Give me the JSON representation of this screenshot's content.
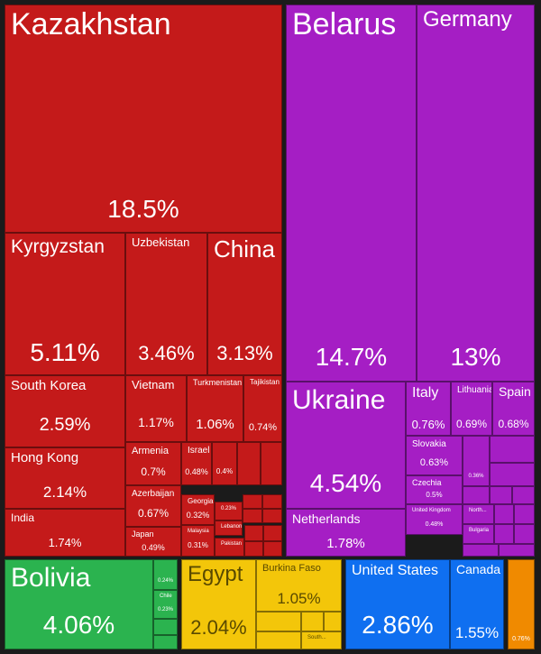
{
  "chart_data": {
    "type": "treemap",
    "colors": {
      "asia": "#c41a1a",
      "europe": "#a51ec4",
      "south_america": "#2bb34f",
      "africa": "#f3c60a",
      "north_america": "#0f6ff0",
      "oceania": "#f08a00"
    },
    "items": [
      {
        "id": "kazakhstan",
        "label": "Kazakhstan",
        "value": "18.5%",
        "group": "asia"
      },
      {
        "id": "kyrgyzstan",
        "label": "Kyrgyzstan",
        "value": "5.11%",
        "group": "asia"
      },
      {
        "id": "uzbekistan",
        "label": "Uzbekistan",
        "value": "3.46%",
        "group": "asia"
      },
      {
        "id": "china",
        "label": "China",
        "value": "3.13%",
        "group": "asia"
      },
      {
        "id": "south-korea",
        "label": "South Korea",
        "value": "2.59%",
        "group": "asia"
      },
      {
        "id": "hong-kong",
        "label": "Hong Kong",
        "value": "2.14%",
        "group": "asia"
      },
      {
        "id": "india",
        "label": "India",
        "value": "1.74%",
        "group": "asia"
      },
      {
        "id": "vietnam",
        "label": "Vietnam",
        "value": "1.17%",
        "group": "asia"
      },
      {
        "id": "turkmenistan",
        "label": "Turkmenistan",
        "value": "1.06%",
        "group": "asia"
      },
      {
        "id": "tajikistan",
        "label": "Tajikistan",
        "value": "0.74%",
        "group": "asia"
      },
      {
        "id": "armenia",
        "label": "Armenia",
        "value": "0.7%",
        "group": "asia"
      },
      {
        "id": "israel",
        "label": "Israel",
        "value": "0.48%",
        "group": "asia"
      },
      {
        "id": "asia-04",
        "label": "",
        "value": "0.4%",
        "group": "asia"
      },
      {
        "id": "azerbaijan",
        "label": "Azerbaijan",
        "value": "0.67%",
        "group": "asia"
      },
      {
        "id": "georgia",
        "label": "Georgia",
        "value": "0.32%",
        "group": "asia"
      },
      {
        "id": "asia-023",
        "label": "",
        "value": "0.23%",
        "group": "asia"
      },
      {
        "id": "lebanon",
        "label": "Lebanon",
        "value": "",
        "group": "asia"
      },
      {
        "id": "japan",
        "label": "Japan",
        "value": "0.49%",
        "group": "asia"
      },
      {
        "id": "malaysia",
        "label": "Malaysia",
        "value": "0.31%",
        "group": "asia"
      },
      {
        "id": "pakistan",
        "label": "Pakistan",
        "value": "",
        "group": "asia"
      },
      {
        "id": "belarus",
        "label": "Belarus",
        "value": "14.7%",
        "group": "europe"
      },
      {
        "id": "germany",
        "label": "Germany",
        "value": "13%",
        "group": "europe"
      },
      {
        "id": "ukraine",
        "label": "Ukraine",
        "value": "4.54%",
        "group": "europe"
      },
      {
        "id": "italy",
        "label": "Italy",
        "value": "0.76%",
        "group": "europe"
      },
      {
        "id": "lithuania",
        "label": "Lithuania",
        "value": "0.69%",
        "group": "europe"
      },
      {
        "id": "spain",
        "label": "Spain",
        "value": "0.68%",
        "group": "europe"
      },
      {
        "id": "slovakia",
        "label": "Slovakia",
        "value": "0.63%",
        "group": "europe"
      },
      {
        "id": "czechia",
        "label": "Czechia",
        "value": "0.5%",
        "group": "europe"
      },
      {
        "id": "united-kingdom",
        "label": "United Kingdom",
        "value": "0.48%",
        "group": "europe"
      },
      {
        "id": "europe-036",
        "label": "",
        "value": "0.36%",
        "group": "europe"
      },
      {
        "id": "north",
        "label": "North...",
        "value": "",
        "group": "europe"
      },
      {
        "id": "bulgaria",
        "label": "Bulgaria",
        "value": "",
        "group": "europe"
      },
      {
        "id": "netherlands",
        "label": "Netherlands",
        "value": "1.78%",
        "group": "europe"
      },
      {
        "id": "bolivia",
        "label": "Bolivia",
        "value": "4.06%",
        "group": "south_america"
      },
      {
        "id": "sa-024",
        "label": "",
        "value": "0.24%",
        "group": "south_america"
      },
      {
        "id": "chile",
        "label": "Chile",
        "value": "0.23%",
        "group": "south_america"
      },
      {
        "id": "egypt",
        "label": "Egypt",
        "value": "2.04%",
        "group": "africa"
      },
      {
        "id": "burkina-faso",
        "label": "Burkina Faso",
        "value": "1.05%",
        "group": "africa"
      },
      {
        "id": "south",
        "label": "South...",
        "value": "",
        "group": "africa"
      },
      {
        "id": "united-states",
        "label": "United States",
        "value": "2.86%",
        "group": "north_america"
      },
      {
        "id": "canada",
        "label": "Canada",
        "value": "1.55%",
        "group": "north_america"
      },
      {
        "id": "oceania",
        "label": "",
        "value": "0.76%",
        "group": "oceania"
      }
    ],
    "fillers": [
      {
        "group": "asia"
      },
      {
        "group": "asia"
      },
      {
        "group": "asia"
      },
      {
        "group": "asia"
      },
      {
        "group": "asia"
      },
      {
        "group": "asia"
      },
      {
        "group": "asia"
      },
      {
        "group": "asia"
      },
      {
        "group": "asia"
      },
      {
        "group": "asia"
      },
      {
        "group": "europe"
      },
      {
        "group": "europe"
      },
      {
        "group": "europe"
      },
      {
        "group": "europe"
      },
      {
        "group": "europe"
      },
      {
        "group": "europe"
      },
      {
        "group": "europe"
      },
      {
        "group": "europe"
      },
      {
        "group": "europe"
      },
      {
        "group": "europe"
      },
      {
        "group": "europe"
      },
      {
        "group": "south_america"
      },
      {
        "group": "south_america"
      },
      {
        "group": "africa"
      },
      {
        "group": "africa"
      },
      {
        "group": "africa"
      },
      {
        "group": "africa"
      }
    ]
  }
}
